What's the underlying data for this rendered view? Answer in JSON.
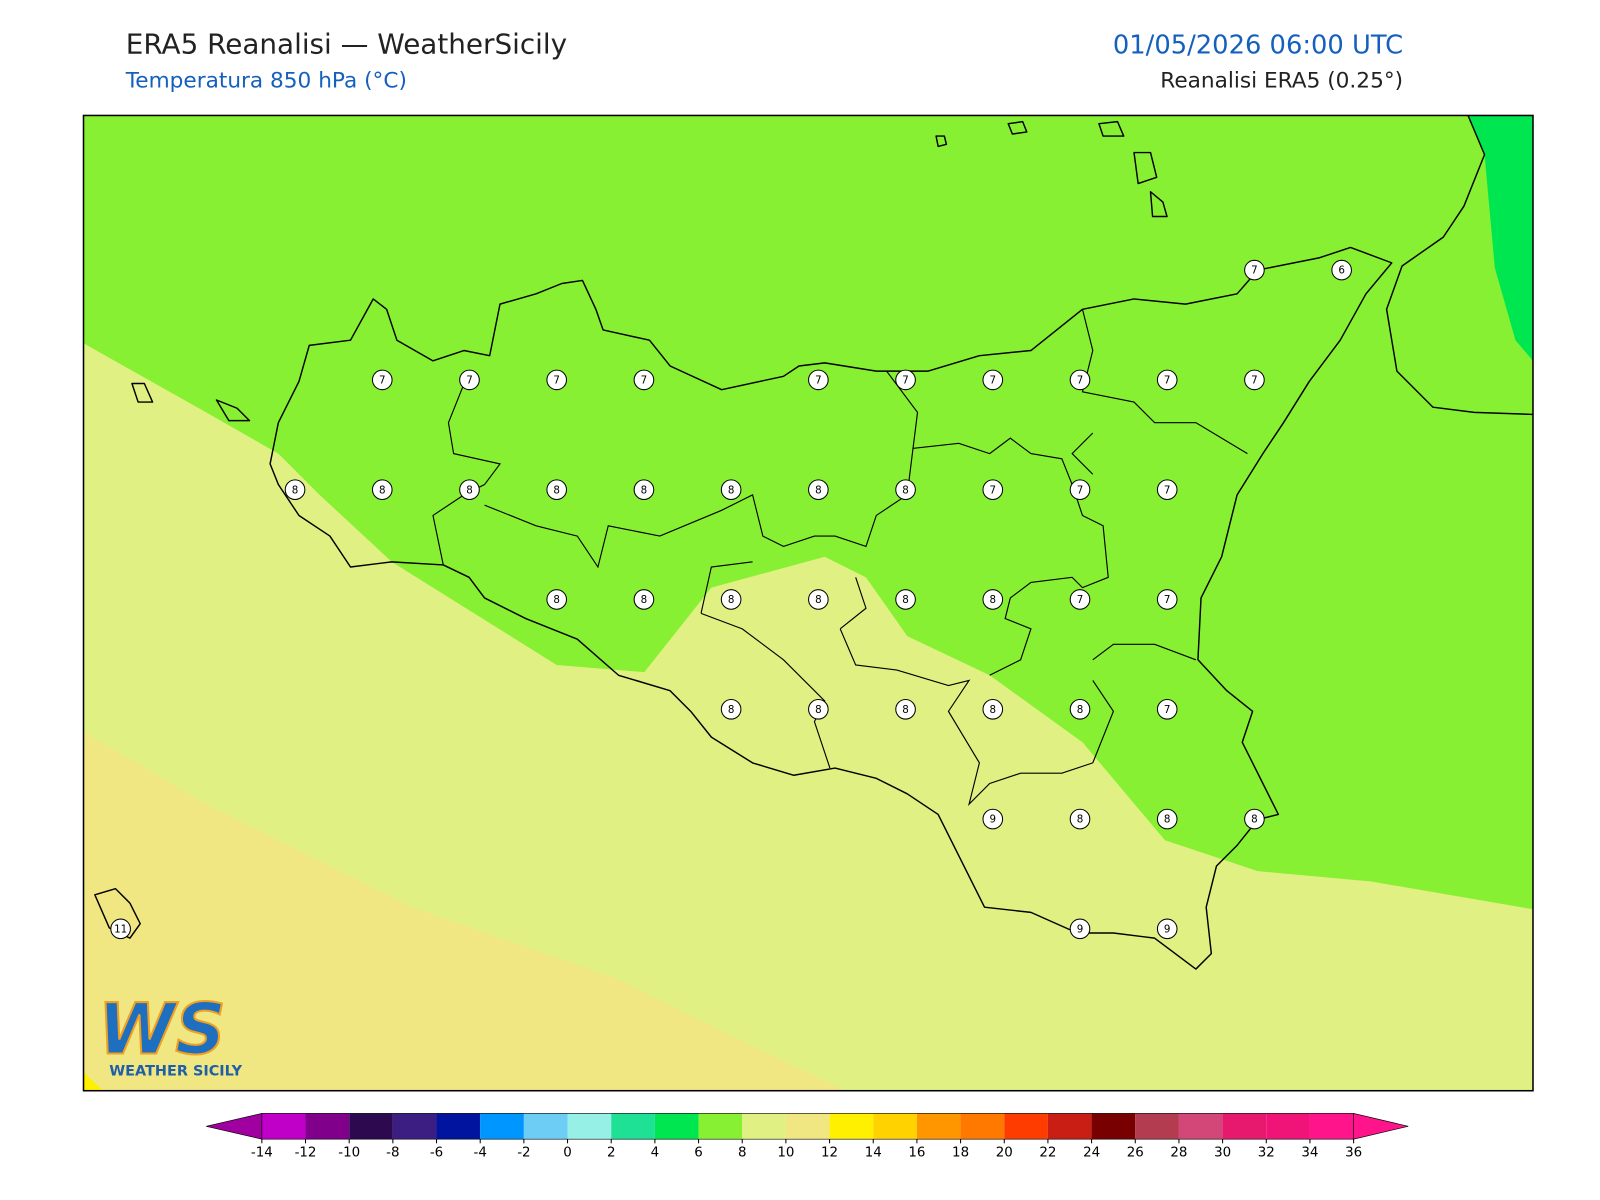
{
  "header": {
    "title": "ERA5 Reanalisi — WeatherSicily",
    "subtitle": "Temperatura 850 hPa (°C)",
    "valid_time": "01/05/2026 06:00 UTC",
    "source": "Reanalisi ERA5 (0.25°)"
  },
  "map": {
    "grid_values": [
      [
        null,
        null,
        null,
        null,
        null,
        null,
        null,
        null,
        null,
        null,
        null,
        null,
        null,
        7,
        6
      ],
      [
        null,
        null,
        null,
        7,
        7,
        7,
        7,
        null,
        7,
        7,
        7,
        7,
        7,
        7,
        null
      ],
      [
        null,
        null,
        8,
        8,
        8,
        8,
        8,
        8,
        8,
        8,
        7,
        7,
        7,
        null,
        null
      ],
      [
        null,
        null,
        null,
        null,
        null,
        8,
        8,
        8,
        8,
        8,
        8,
        7,
        7,
        null,
        null
      ],
      [
        null,
        null,
        null,
        null,
        null,
        null,
        null,
        8,
        8,
        8,
        8,
        8,
        7,
        null,
        null
      ],
      [
        null,
        null,
        null,
        null,
        null,
        null,
        null,
        null,
        null,
        null,
        9,
        8,
        8,
        8,
        null
      ],
      [
        11,
        null,
        null,
        null,
        null,
        null,
        null,
        null,
        null,
        null,
        null,
        9,
        9,
        null,
        null
      ]
    ]
  },
  "colorbar": {
    "ticks": [
      -14,
      -12,
      -10,
      -8,
      -6,
      -4,
      -2,
      0,
      2,
      4,
      6,
      8,
      10,
      12,
      14,
      16,
      18,
      20,
      22,
      24,
      26,
      28,
      30,
      32,
      34,
      36
    ],
    "colors": [
      "#c000c8",
      "#80008c",
      "#2d0a50",
      "#3c1e82",
      "#0014a0",
      "#0096ff",
      "#6ecdf5",
      "#96f0e6",
      "#1ee196",
      "#00e650",
      "#87f032",
      "#e1f082",
      "#f0e682",
      "#fff000",
      "#ffd200",
      "#ff9600",
      "#ff7800",
      "#ff3c00",
      "#c81e14",
      "#780000",
      "#b43c50",
      "#d24678",
      "#e6196e",
      "#f01478",
      "#ff148c"
    ],
    "under_color": "#a000a0",
    "over_color": "#ff148c"
  },
  "logo": {
    "letters": "WS",
    "caption": "WEATHER SICILY"
  }
}
